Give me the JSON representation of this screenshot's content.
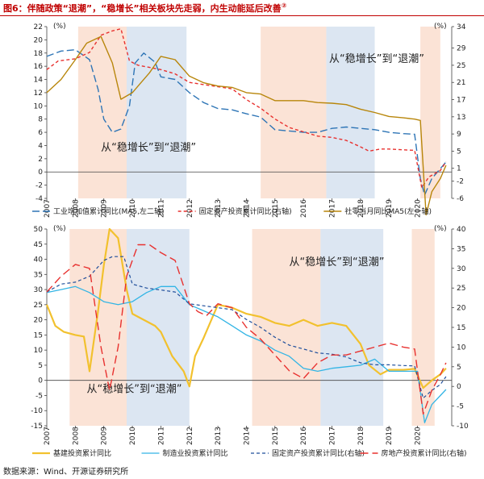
{
  "title": "图6：伴随政策“退潮”，“稳增长”相关板块先走弱，内生动能延后改善",
  "footnote_mark": "②",
  "source": "数据来源：Wind、开源证券研究所",
  "colors": {
    "blue": "#2e75b6",
    "red": "#e8312f",
    "olive": "#b8860b",
    "gold": "#f2c12e",
    "cyan": "#33b5e5",
    "navy": "#1f4e9b",
    "shade_pink": "#fbe3d6",
    "shade_blue": "#dce6f2"
  },
  "chart_data": [
    {
      "type": "line",
      "id": "top",
      "unit_left": "(%)",
      "unit_right": "(%)",
      "x_ticks": [
        "2007",
        "2008",
        "2009",
        "2010",
        "2011",
        "2012",
        "2013",
        "2014",
        "2015",
        "2016",
        "2017",
        "2018",
        "2019",
        "2020"
      ],
      "xlim": [
        2007,
        2021.2
      ],
      "ylim_left": [
        -4,
        22
      ],
      "ylim_right": [
        -6,
        34
      ],
      "yticks_left": [
        -4,
        -2,
        0,
        2,
        4,
        6,
        8,
        10,
        12,
        14,
        16,
        18,
        20,
        22
      ],
      "yticks_right": [
        -6,
        -2,
        1,
        5,
        9,
        13,
        17,
        21,
        25,
        29,
        34
      ],
      "shades": [
        {
          "from": 2008.1,
          "to": 2009.8,
          "color": "shade_pink"
        },
        {
          "from": 2009.8,
          "to": 2011.9,
          "color": "shade_blue"
        },
        {
          "from": 2014.5,
          "to": 2016.8,
          "color": "shade_pink"
        },
        {
          "from": 2016.8,
          "to": 2018.5,
          "color": "shade_blue"
        },
        {
          "from": 2020.1,
          "to": 2020.8,
          "color": "shade_pink"
        }
      ],
      "annotations": [
        {
          "text": "从“稳增长”到“退潮”",
          "x": 2008.9,
          "y": 3.2
        },
        {
          "text": "从“稳增长”到“退潮”",
          "x": 2016.9,
          "y": 16.6
        }
      ],
      "series": [
        {
          "name": "工业增加值累计同比(MA5,左二轴)",
          "axis": "left",
          "color": "blue",
          "dash": "9,4",
          "x": [
            2007,
            2007.5,
            2008,
            2008.5,
            2008.8,
            2009,
            2009.3,
            2009.6,
            2009.9,
            2010.1,
            2010.4,
            2010.8,
            2011,
            2011.5,
            2012,
            2012.5,
            2013,
            2013.5,
            2014,
            2014.5,
            2015,
            2015.5,
            2016,
            2016.5,
            2017,
            2017.5,
            2018,
            2018.5,
            2019,
            2019.5,
            2019.9,
            2020.1,
            2020.25,
            2020.5,
            2020.8,
            2021
          ],
          "y": [
            17.5,
            18.3,
            18.5,
            17,
            12.5,
            8,
            6,
            6.5,
            10,
            16.5,
            18,
            16.6,
            14.4,
            14,
            12,
            10.5,
            9.6,
            9.4,
            8.8,
            8.3,
            6.4,
            6.2,
            6,
            6,
            6.6,
            6.8,
            6.6,
            6.4,
            6,
            5.8,
            5.7,
            -1,
            -3.5,
            -1,
            0.5,
            1.5
          ]
        },
        {
          "name": "固定资产投资累计同比(右轴)",
          "axis": "right",
          "color": "red",
          "dash": "4,3",
          "x": [
            2007,
            2007.4,
            2008,
            2008.5,
            2008.9,
            2009.3,
            2009.6,
            2009.9,
            2010.2,
            2010.6,
            2011,
            2011.5,
            2012,
            2012.5,
            2013,
            2013.5,
            2014,
            2014.5,
            2015,
            2015.5,
            2016,
            2016.5,
            2017,
            2017.5,
            2018,
            2018.3,
            2018.7,
            2019,
            2019.5,
            2019.9,
            2020.15,
            2020.4,
            2020.8,
            2021
          ],
          "y": [
            24,
            26,
            26.5,
            28,
            32,
            33,
            33.5,
            26,
            25,
            24.5,
            24,
            23,
            21,
            20.5,
            20,
            19.5,
            17,
            15,
            12.5,
            10.5,
            9.5,
            8.5,
            8.2,
            7.5,
            6,
            5,
            5.5,
            5.5,
            5.3,
            5.2,
            -3.5,
            -1,
            0.5,
            2.5
          ]
        },
        {
          "name": "社零当月同比MA5(左一轴)",
          "axis": "left",
          "color": "olive",
          "dash": "",
          "x": [
            2007,
            2007.5,
            2008,
            2008.4,
            2008.9,
            2009.3,
            2009.6,
            2010,
            2010.3,
            2010.6,
            2011,
            2011.5,
            2012,
            2012.5,
            2013,
            2013.5,
            2014,
            2014.5,
            2015,
            2015.5,
            2016,
            2016.5,
            2017,
            2017.5,
            2018,
            2018.5,
            2019,
            2019.5,
            2019.9,
            2020.1,
            2020.3,
            2020.5,
            2020.8,
            2021
          ],
          "y": [
            12,
            14,
            17,
            19.5,
            20.5,
            16.5,
            11,
            12,
            13.5,
            15,
            17.5,
            17,
            14.5,
            13.5,
            13,
            12.8,
            12,
            11.8,
            10.8,
            10.8,
            10.8,
            10.5,
            10.4,
            10.2,
            9.5,
            9,
            8.4,
            8.2,
            8,
            7.8,
            -6.5,
            -3,
            -1,
            1
          ]
        }
      ]
    },
    {
      "type": "line",
      "id": "bottom",
      "unit_left": "(%)",
      "unit_right": "(%)",
      "x_ticks": [
        "2007",
        "2008",
        "2009",
        "2010",
        "2011",
        "2012",
        "2013",
        "2014",
        "2015",
        "2016",
        "2017",
        "2018",
        "2019",
        "2020"
      ],
      "xlim": [
        2007,
        2021.2
      ],
      "ylim_left": [
        -15,
        50
      ],
      "ylim_right": [
        -10,
        40
      ],
      "yticks_left": [
        -15,
        -10,
        -5,
        0,
        5,
        10,
        15,
        20,
        25,
        30,
        35,
        40,
        45,
        50
      ],
      "yticks_right": [
        -10,
        -5,
        0,
        5,
        10,
        15,
        20,
        25,
        30,
        35,
        40
      ],
      "shades": [
        {
          "from": 2007.8,
          "to": 2009.8,
          "color": "shade_pink"
        },
        {
          "from": 2009.8,
          "to": 2012.0,
          "color": "shade_blue"
        },
        {
          "from": 2014.2,
          "to": 2016.6,
          "color": "shade_pink"
        },
        {
          "from": 2016.6,
          "to": 2018.8,
          "color": "shade_blue"
        },
        {
          "from": 2019.8,
          "to": 2020.6,
          "color": "shade_pink"
        }
      ],
      "annotations": [
        {
          "text": "从“稳增长”到“退潮”",
          "x": 2008.4,
          "y": -4
        },
        {
          "text": "从“稳增长”到“退潮”",
          "x": 2015.5,
          "y": 38
        }
      ],
      "series": [
        {
          "name": "基建投资累计同比",
          "axis": "left",
          "color": "gold",
          "dash": "",
          "width": 2.2,
          "x": [
            2007,
            2007.3,
            2007.6,
            2008,
            2008.3,
            2008.5,
            2008.8,
            2009,
            2009.2,
            2009.5,
            2009.8,
            2010,
            2010.4,
            2010.8,
            2011,
            2011.4,
            2011.8,
            2012,
            2012.2,
            2012.5,
            2013,
            2013.5,
            2014,
            2014.5,
            2015,
            2015.5,
            2016,
            2016.5,
            2017,
            2017.5,
            2018,
            2018.3,
            2018.7,
            2019,
            2019.5,
            2019.9,
            2020.2,
            2020.5,
            2020.8,
            2021
          ],
          "y": [
            25,
            18,
            16,
            15,
            14.5,
            3,
            23,
            38,
            50,
            47,
            30,
            22,
            20,
            18,
            16,
            8,
            3,
            -2,
            8,
            14,
            25,
            24,
            22,
            21,
            19,
            18,
            20,
            18,
            19,
            18,
            12,
            5,
            2,
            3.5,
            3.5,
            3.8,
            -2.5,
            0,
            2,
            4
          ]
        },
        {
          "name": "制造业投资累计同比",
          "axis": "left",
          "color": "cyan",
          "dash": "",
          "width": 1.3,
          "x": [
            2007,
            2007.5,
            2008,
            2008.5,
            2009,
            2009.5,
            2010,
            2010.5,
            2011,
            2011.5,
            2012,
            2012.5,
            2013,
            2013.5,
            2014,
            2014.5,
            2015,
            2015.5,
            2016,
            2016.5,
            2017,
            2017.5,
            2018,
            2018.5,
            2019,
            2019.5,
            2020,
            2020.25,
            2020.5,
            2020.8,
            2021
          ],
          "y": [
            29,
            30,
            31,
            29,
            26,
            25,
            26,
            29,
            31,
            31,
            25,
            23,
            21,
            18,
            15,
            13,
            10,
            8,
            4,
            3,
            4,
            4.5,
            5,
            7,
            3,
            3,
            3,
            -14,
            -8,
            -5,
            -3
          ]
        },
        {
          "name": "固定资产投资累计同比(右轴)",
          "axis": "right",
          "color": "navy",
          "dash": "4,3",
          "width": 1.2,
          "x": [
            2007,
            2007.5,
            2008,
            2008.5,
            2009,
            2009.3,
            2009.7,
            2010,
            2010.5,
            2011,
            2011.5,
            2012,
            2012.5,
            2013,
            2013.5,
            2014,
            2014.5,
            2015,
            2015.5,
            2016,
            2016.5,
            2017,
            2017.5,
            2018,
            2018.5,
            2019,
            2019.5,
            2019.9,
            2020.2,
            2020.5,
            2020.8,
            2021
          ],
          "y": [
            24,
            26,
            26.5,
            28,
            32,
            33,
            33,
            26,
            25,
            24.5,
            24,
            21,
            20.5,
            20,
            19.5,
            17,
            15,
            12.5,
            10.5,
            9.5,
            8.5,
            8.2,
            7.5,
            6,
            5.5,
            5.5,
            5.3,
            5.2,
            -3,
            -1,
            0.5,
            2.5
          ]
        },
        {
          "name": "房地产投资累计同比(右轴)",
          "axis": "right",
          "color": "red",
          "dash": "10,5",
          "width": 1.4,
          "x": [
            2007,
            2007.5,
            2008,
            2008.5,
            2008.9,
            2009.2,
            2009.5,
            2009.8,
            2010.2,
            2010.6,
            2011,
            2011.5,
            2012,
            2012.3,
            2012.6,
            2013,
            2013.5,
            2014,
            2014.5,
            2015,
            2015.5,
            2016,
            2016.5,
            2017,
            2017.5,
            2018,
            2018.5,
            2019,
            2019.5,
            2019.9,
            2020.2,
            2020.5,
            2020.8,
            2021
          ],
          "y": [
            24,
            28,
            31,
            30,
            10,
            -1,
            10,
            28,
            36,
            36,
            34,
            32,
            21,
            19,
            18,
            21,
            20,
            15,
            12,
            8,
            4,
            2,
            6,
            8,
            8,
            9,
            10,
            11,
            10,
            9.5,
            -7,
            -1,
            3,
            6
          ]
        }
      ]
    }
  ],
  "legend_top": [
    "工业增加值累计同比(MA5,左二轴)",
    "固定资产投资累计同比(右轴)",
    "社零当月同比MA5(左一轴)"
  ],
  "legend_bottom": [
    "基建投资累计同比",
    "制造业投资累计同比",
    "固定资产投资累计同比(右轴)",
    "房地产投资累计同比(右轴)"
  ]
}
